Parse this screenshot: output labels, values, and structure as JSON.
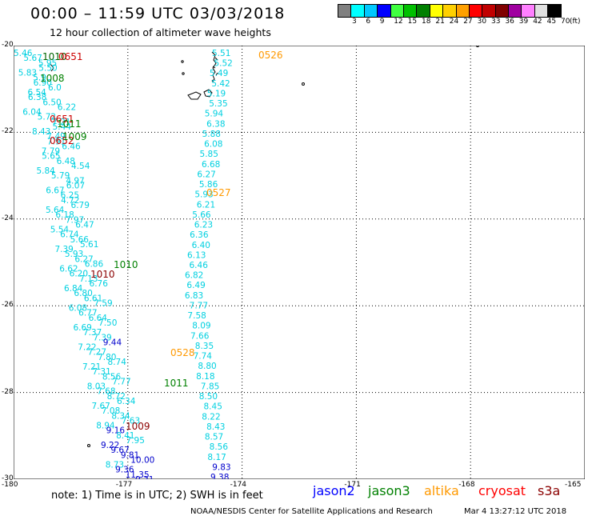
{
  "title": "00:00 – 11:59 UTC 03/03/2018",
  "subtitle": "12 hour collection of altimeter wave heights",
  "colorbar": {
    "swatches": [
      "#808080",
      "#00ffff",
      "#00c8ff",
      "#0000ff",
      "#40ff40",
      "#00c000",
      "#008000",
      "#ffff00",
      "#ffd000",
      "#ffa000",
      "#ff0000",
      "#c00000",
      "#800000",
      "#a000a0",
      "#ff80ff",
      "#e0e0e0",
      "#000000"
    ],
    "labels": [
      "3",
      "6",
      "9",
      "12",
      "15",
      "18",
      "21",
      "24",
      "27",
      "30",
      "33",
      "36",
      "39",
      "42",
      "45",
      "70"
    ],
    "unit": "(ft)"
  },
  "y_labels": [
    "-20",
    "-22",
    "-24",
    "-26",
    "-28",
    "-30"
  ],
  "x_labels": [
    "-180",
    "-177",
    "-174",
    "-171",
    "-168",
    "-165"
  ],
  "track_labels": [
    {
      "t": "5.46",
      "c": "#00d0e0"
    },
    {
      "t": "5.67",
      "c": "#00d0e0"
    },
    {
      "t": "5.95",
      "c": "#00d0e0"
    },
    {
      "t": "5.50",
      "c": "#00d0e0"
    },
    {
      "t": "5.83",
      "c": "#00d0e0"
    },
    {
      "t": "5.9",
      "c": "#00d0e0"
    },
    {
      "t": "6.90",
      "c": "#00d0e0"
    },
    {
      "t": "6.0",
      "c": "#00d0e0"
    },
    {
      "t": "6.54",
      "c": "#00d0e0"
    },
    {
      "t": "6.38",
      "c": "#00d0e0"
    },
    {
      "t": "6.50",
      "c": "#00d0e0"
    },
    {
      "t": "6.22",
      "c": "#00d0e0"
    },
    {
      "t": "6.04",
      "c": "#00d0e0"
    },
    {
      "t": "5.72",
      "c": "#00d0e0"
    },
    {
      "t": "7.21",
      "c": "#00d0e0"
    },
    {
      "t": "5.44",
      "c": "#00d0e0"
    },
    {
      "t": "8.43",
      "c": "#00d0e0"
    },
    {
      "t": "7.49",
      "c": "#00d0e0"
    },
    {
      "t": "7.91",
      "c": "#00d0e0"
    },
    {
      "t": "6.46",
      "c": "#00d0e0"
    },
    {
      "t": "7.79",
      "c": "#00d0e0"
    },
    {
      "t": "5.65",
      "c": "#00d0e0"
    },
    {
      "t": "6.48",
      "c": "#00d0e0"
    },
    {
      "t": "4.54",
      "c": "#00d0e0"
    },
    {
      "t": "5.84",
      "c": "#00d0e0"
    },
    {
      "t": "5.79",
      "c": "#00d0e0"
    },
    {
      "t": "4.97",
      "c": "#00d0e0"
    },
    {
      "t": "6.07",
      "c": "#00d0e0"
    },
    {
      "t": "6.67",
      "c": "#00d0e0"
    },
    {
      "t": "6.25",
      "c": "#00d0e0"
    },
    {
      "t": "4.72",
      "c": "#00d0e0"
    },
    {
      "t": "6.79",
      "c": "#00d0e0"
    },
    {
      "t": "5.64",
      "c": "#00d0e0"
    },
    {
      "t": "6.18",
      "c": "#00d0e0"
    },
    {
      "t": "7.97",
      "c": "#00d0e0"
    },
    {
      "t": "6.47",
      "c": "#00d0e0"
    },
    {
      "t": "5.54",
      "c": "#00d0e0"
    },
    {
      "t": "6.74",
      "c": "#00d0e0"
    },
    {
      "t": "5.66",
      "c": "#00d0e0"
    },
    {
      "t": "5.61",
      "c": "#00d0e0"
    },
    {
      "t": "7.39",
      "c": "#00d0e0"
    },
    {
      "t": "5.93",
      "c": "#00d0e0"
    },
    {
      "t": "6.27",
      "c": "#00d0e0"
    },
    {
      "t": "6.86",
      "c": "#00d0e0"
    },
    {
      "t": "6.62",
      "c": "#00d0e0"
    },
    {
      "t": "6.20",
      "c": "#00d0e0"
    },
    {
      "t": "7.13",
      "c": "#00d0e0"
    },
    {
      "t": "6.76",
      "c": "#00d0e0"
    },
    {
      "t": "6.84",
      "c": "#00d0e0"
    },
    {
      "t": "6.80",
      "c": "#00d0e0"
    },
    {
      "t": "6.61",
      "c": "#00d0e0"
    },
    {
      "t": "7.59",
      "c": "#00d0e0"
    },
    {
      "t": "6.08",
      "c": "#00d0e0"
    },
    {
      "t": "6.77",
      "c": "#00d0e0"
    },
    {
      "t": "6.64",
      "c": "#00d0e0"
    },
    {
      "t": "7.50",
      "c": "#00d0e0"
    },
    {
      "t": "6.69",
      "c": "#00d0e0"
    },
    {
      "t": "7.37",
      "c": "#00d0e0"
    },
    {
      "t": "7.39",
      "c": "#00d0e0"
    },
    {
      "t": "9.44",
      "c": "#0000cc"
    },
    {
      "t": "7.22",
      "c": "#00d0e0"
    },
    {
      "t": "7.27",
      "c": "#00d0e0"
    },
    {
      "t": "7.80",
      "c": "#00d0e0"
    },
    {
      "t": "8.74",
      "c": "#00d0e0"
    },
    {
      "t": "7.21",
      "c": "#00d0e0"
    },
    {
      "t": "7.31",
      "c": "#00d0e0"
    },
    {
      "t": "8.56",
      "c": "#00d0e0"
    },
    {
      "t": "7.77",
      "c": "#00d0e0"
    },
    {
      "t": "8.03",
      "c": "#00d0e0"
    },
    {
      "t": "7.68",
      "c": "#00d0e0"
    },
    {
      "t": "8.72",
      "c": "#00d0e0"
    },
    {
      "t": "6.34",
      "c": "#00d0e0"
    },
    {
      "t": "7.67",
      "c": "#00d0e0"
    },
    {
      "t": "7.08",
      "c": "#00d0e0"
    },
    {
      "t": "8.34",
      "c": "#00d0e0"
    },
    {
      "t": "7.63",
      "c": "#00d0e0"
    },
    {
      "t": "8.94",
      "c": "#00d0e0"
    },
    {
      "t": "9.16",
      "c": "#0000cc"
    },
    {
      "t": "8.41",
      "c": "#00d0e0"
    },
    {
      "t": "7.95",
      "c": "#00d0e0"
    },
    {
      "t": "9.22",
      "c": "#0000cc"
    },
    {
      "t": "9.67",
      "c": "#0000cc"
    },
    {
      "t": "9.81",
      "c": "#0000cc"
    },
    {
      "t": "10.00",
      "c": "#0000cc"
    },
    {
      "t": "8.73",
      "c": "#00d0e0"
    },
    {
      "t": "9.36",
      "c": "#0000cc"
    },
    {
      "t": "11.35",
      "c": "#0000cc"
    },
    {
      "t": "9.21",
      "c": "#0000cc"
    },
    {
      "t": "5.51",
      "c": "#00d0e0"
    },
    {
      "t": "5.52",
      "c": "#00d0e0"
    },
    {
      "t": "5.49",
      "c": "#00d0e0"
    },
    {
      "t": "5.42",
      "c": "#00d0e0"
    },
    {
      "t": "5.19",
      "c": "#00d0e0"
    },
    {
      "t": "5.35",
      "c": "#00d0e0"
    },
    {
      "t": "5.94",
      "c": "#00d0e0"
    },
    {
      "t": "6.38",
      "c": "#00d0e0"
    },
    {
      "t": "5.88",
      "c": "#00d0e0"
    },
    {
      "t": "6.08",
      "c": "#00d0e0"
    },
    {
      "t": "5.85",
      "c": "#00d0e0"
    },
    {
      "t": "6.68",
      "c": "#00d0e0"
    },
    {
      "t": "6.27",
      "c": "#00d0e0"
    },
    {
      "t": "5.86",
      "c": "#00d0e0"
    },
    {
      "t": "5.93",
      "c": "#00d0e0"
    },
    {
      "t": "6.21",
      "c": "#00d0e0"
    },
    {
      "t": "5.66",
      "c": "#00d0e0"
    },
    {
      "t": "6.23",
      "c": "#00d0e0"
    },
    {
      "t": "6.36",
      "c": "#00d0e0"
    },
    {
      "t": "6.40",
      "c": "#00d0e0"
    },
    {
      "t": "6.13",
      "c": "#00d0e0"
    },
    {
      "t": "6.46",
      "c": "#00d0e0"
    },
    {
      "t": "6.82",
      "c": "#00d0e0"
    },
    {
      "t": "6.49",
      "c": "#00d0e0"
    },
    {
      "t": "6.83",
      "c": "#00d0e0"
    },
    {
      "t": "7.77",
      "c": "#00d0e0"
    },
    {
      "t": "7.58",
      "c": "#00d0e0"
    },
    {
      "t": "8.09",
      "c": "#00d0e0"
    },
    {
      "t": "7.66",
      "c": "#00d0e0"
    },
    {
      "t": "8.35",
      "c": "#00d0e0"
    },
    {
      "t": "7.74",
      "c": "#00d0e0"
    },
    {
      "t": "8.80",
      "c": "#00d0e0"
    },
    {
      "t": "8.18",
      "c": "#00d0e0"
    },
    {
      "t": "7.85",
      "c": "#00d0e0"
    },
    {
      "t": "8.50",
      "c": "#00d0e0"
    },
    {
      "t": "8.45",
      "c": "#00d0e0"
    },
    {
      "t": "8.22",
      "c": "#00d0e0"
    },
    {
      "t": "8.43",
      "c": "#00d0e0"
    },
    {
      "t": "8.57",
      "c": "#00d0e0"
    },
    {
      "t": "8.56",
      "c": "#00d0e0"
    },
    {
      "t": "8.17",
      "c": "#00d0e0"
    },
    {
      "t": "9.83",
      "c": "#0000cc"
    },
    {
      "t": "9.38",
      "c": "#0000cc"
    }
  ],
  "time_labels": [
    {
      "t": "1010",
      "c": "#006400"
    },
    {
      "t": "0651",
      "c": "#cc0000"
    },
    {
      "t": "1008",
      "c": "#008000"
    },
    {
      "t": "0651",
      "c": "#cc0000"
    },
    {
      "t": "1011",
      "c": "#008000"
    },
    {
      "t": "0652",
      "c": "#cc0000"
    },
    {
      "t": "1009",
      "c": "#008000"
    },
    {
      "t": "1010",
      "c": "#008000"
    },
    {
      "t": "1010",
      "c": "#8b0000"
    },
    {
      "t": "1009",
      "c": "#8b0000"
    },
    {
      "t": "1011",
      "c": "#008000"
    },
    {
      "t": "0526",
      "c": "#ff9900"
    },
    {
      "t": "0527",
      "c": "#ff9900"
    },
    {
      "t": "0528",
      "c": "#ff9900"
    }
  ],
  "note": "note: 1) Time is in UTC; 2) SWH is in feet",
  "satellites": [
    {
      "name": "jason2",
      "color": "#0000ff"
    },
    {
      "name": "jason3",
      "color": "#008000"
    },
    {
      "name": "altika",
      "color": "#ff9900"
    },
    {
      "name": "cryosat",
      "color": "#ff0000"
    },
    {
      "name": "s3a",
      "color": "#8b0000"
    }
  ],
  "footer": "NOAA/NESDIS Center for Satellite Applications and Research",
  "footer_time": "Mar  4 13:27:12 UTC 2018"
}
